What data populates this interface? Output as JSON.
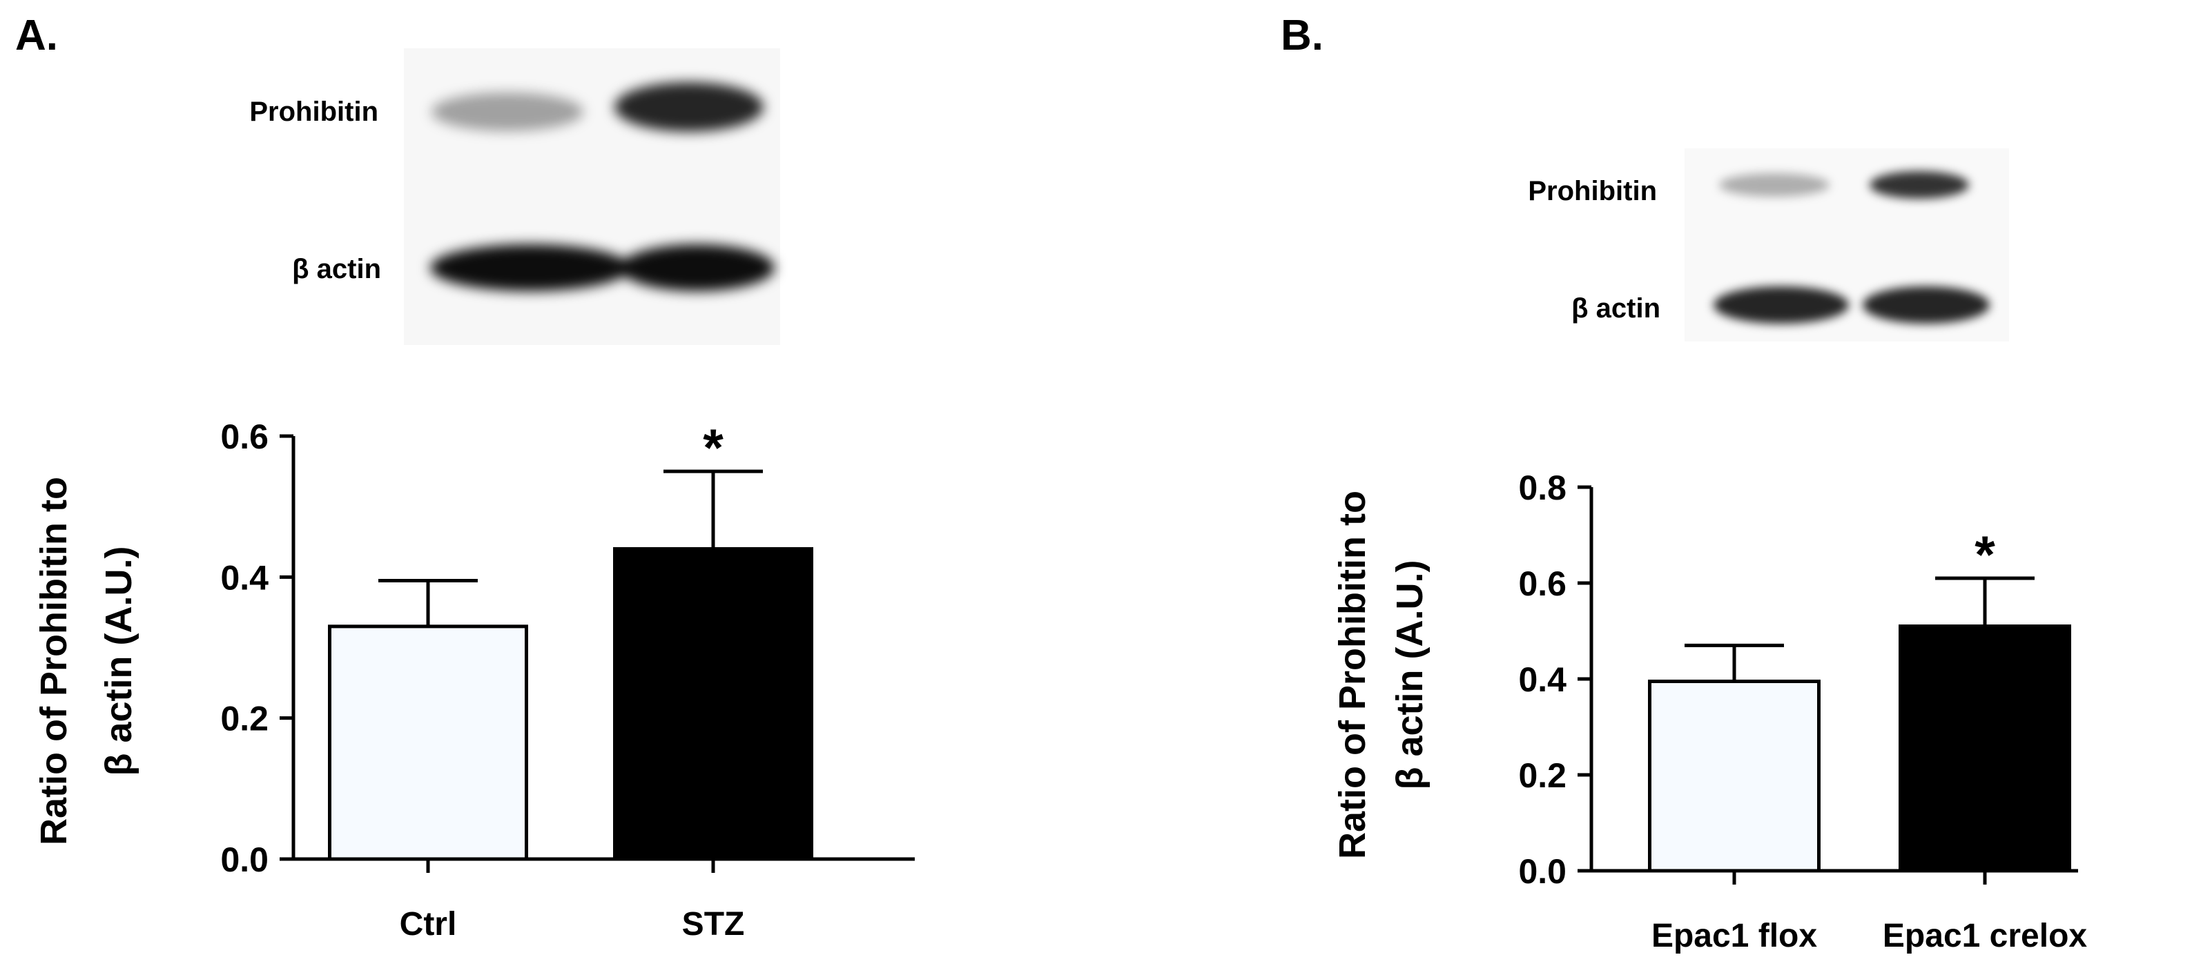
{
  "panels": {
    "A": {
      "letter": "A.",
      "blot": {
        "bands": [
          {
            "label": "Prohibitin",
            "intensities": [
              0.35,
              0.85
            ]
          },
          {
            "label": "β actin",
            "intensities": [
              0.95,
              0.95
            ]
          }
        ]
      }
    },
    "B": {
      "letter": "B.",
      "blot": {
        "bands": [
          {
            "label": "Prohibitin",
            "intensities": [
              0.3,
              0.8
            ]
          },
          {
            "label": "β actin",
            "intensities": [
              0.85,
              0.85
            ]
          }
        ]
      }
    }
  },
  "chart_data": [
    {
      "type": "bar",
      "panel": "A",
      "categories": [
        "Ctrl",
        "STZ"
      ],
      "values": [
        0.33,
        0.44
      ],
      "errors": [
        0.065,
        0.11
      ],
      "bar_colors": [
        "#f6faff",
        "#000000"
      ],
      "significance": [
        "",
        "*"
      ],
      "ylabel_line1": "Ratio of Prohibitin to",
      "ylabel_line2": "β actin  (A.U.)",
      "ylim": [
        0,
        0.6
      ],
      "yticks": [
        0.0,
        0.2,
        0.4,
        0.6
      ],
      "ytick_labels": [
        "0.0",
        "0.2",
        "0.4",
        "0.6"
      ],
      "grid": false
    },
    {
      "type": "bar",
      "panel": "B",
      "categories": [
        "Epac1 flox",
        "Epac1 crelox"
      ],
      "values": [
        0.395,
        0.51
      ],
      "errors": [
        0.075,
        0.1
      ],
      "bar_colors": [
        "#f6faff",
        "#000000"
      ],
      "significance": [
        "",
        "*"
      ],
      "ylabel_line1": "Ratio of Prohibitin to",
      "ylabel_line2": "β actin  (A.U.)",
      "ylim": [
        0,
        0.8
      ],
      "yticks": [
        0.0,
        0.2,
        0.4,
        0.6,
        0.8
      ],
      "ytick_labels": [
        "0.0",
        "0.2",
        "0.4",
        "0.6",
        "0.8"
      ],
      "grid": false
    }
  ]
}
